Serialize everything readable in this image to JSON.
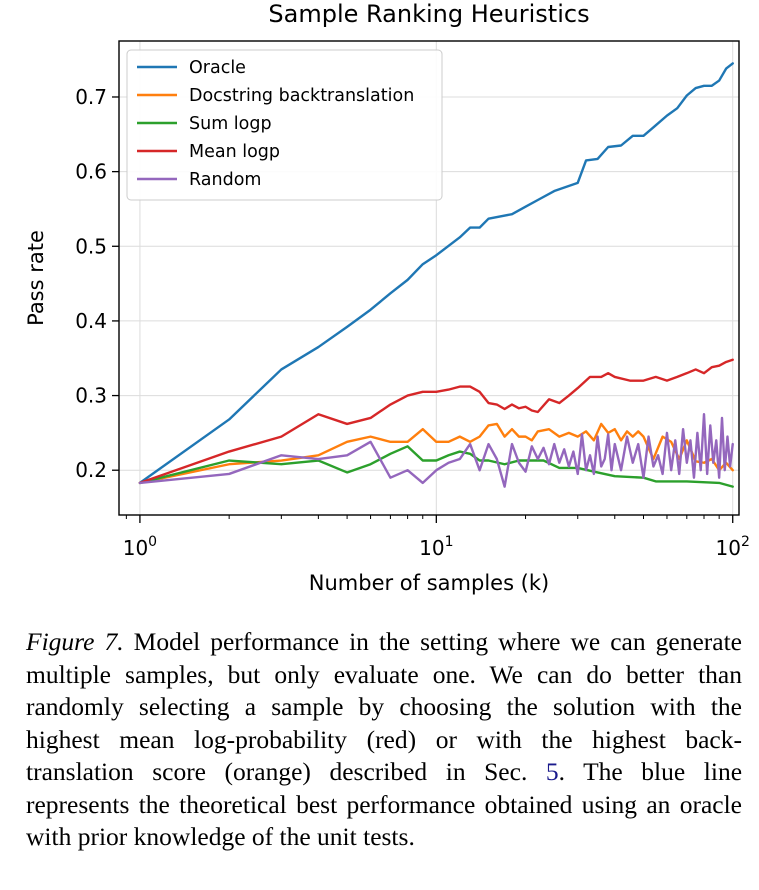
{
  "chart_data": {
    "type": "line",
    "title": "Sample Ranking Heuristics",
    "xlabel": "Number of samples (k)",
    "ylabel": "Pass rate",
    "xscale": "log",
    "xlim": [
      0.85,
      105
    ],
    "ylim": [
      0.14,
      0.775
    ],
    "x_ticks": [
      {
        "value": 1,
        "base": "10",
        "exp": "0"
      },
      {
        "value": 10,
        "base": "10",
        "exp": "1"
      },
      {
        "value": 100,
        "base": "10",
        "exp": "2"
      }
    ],
    "y_ticks": [
      "0.2",
      "0.3",
      "0.4",
      "0.5",
      "0.6",
      "0.7"
    ],
    "grid": true,
    "legend_position": "top-left",
    "series": [
      {
        "name": "Oracle",
        "color": "#1f77b4",
        "points": [
          [
            1,
            0.183
          ],
          [
            2,
            0.268
          ],
          [
            3,
            0.335
          ],
          [
            4,
            0.365
          ],
          [
            5,
            0.392
          ],
          [
            6,
            0.415
          ],
          [
            7,
            0.437
          ],
          [
            8,
            0.455
          ],
          [
            9,
            0.476
          ],
          [
            10,
            0.488
          ],
          [
            12,
            0.512
          ],
          [
            13,
            0.525
          ],
          [
            14,
            0.525
          ],
          [
            15,
            0.537
          ],
          [
            18,
            0.543
          ],
          [
            20,
            0.553
          ],
          [
            22,
            0.562
          ],
          [
            25,
            0.574
          ],
          [
            30,
            0.585
          ],
          [
            32,
            0.615
          ],
          [
            35,
            0.617
          ],
          [
            38,
            0.633
          ],
          [
            42,
            0.635
          ],
          [
            46,
            0.648
          ],
          [
            50,
            0.648
          ],
          [
            55,
            0.662
          ],
          [
            60,
            0.675
          ],
          [
            65,
            0.685
          ],
          [
            70,
            0.702
          ],
          [
            75,
            0.712
          ],
          [
            80,
            0.715
          ],
          [
            85,
            0.715
          ],
          [
            90,
            0.722
          ],
          [
            95,
            0.738
          ],
          [
            100,
            0.745
          ]
        ]
      },
      {
        "name": "Docstring backtranslation",
        "color": "#ff7f0e",
        "points": [
          [
            1,
            0.183
          ],
          [
            2,
            0.208
          ],
          [
            3,
            0.213
          ],
          [
            4,
            0.22
          ],
          [
            5,
            0.238
          ],
          [
            6,
            0.245
          ],
          [
            7,
            0.238
          ],
          [
            8,
            0.238
          ],
          [
            9,
            0.255
          ],
          [
            10,
            0.238
          ],
          [
            11,
            0.238
          ],
          [
            12,
            0.245
          ],
          [
            13,
            0.238
          ],
          [
            14,
            0.245
          ],
          [
            15,
            0.26
          ],
          [
            16,
            0.262
          ],
          [
            17,
            0.245
          ],
          [
            18,
            0.255
          ],
          [
            19,
            0.245
          ],
          [
            20,
            0.245
          ],
          [
            21,
            0.24
          ],
          [
            22,
            0.252
          ],
          [
            24,
            0.255
          ],
          [
            26,
            0.245
          ],
          [
            28,
            0.25
          ],
          [
            30,
            0.245
          ],
          [
            32,
            0.252
          ],
          [
            34,
            0.24
          ],
          [
            36,
            0.262
          ],
          [
            38,
            0.25
          ],
          [
            40,
            0.255
          ],
          [
            42,
            0.24
          ],
          [
            44,
            0.252
          ],
          [
            46,
            0.245
          ],
          [
            48,
            0.252
          ],
          [
            50,
            0.245
          ],
          [
            54,
            0.215
          ],
          [
            58,
            0.245
          ],
          [
            62,
            0.238
          ],
          [
            66,
            0.215
          ],
          [
            70,
            0.24
          ],
          [
            75,
            0.212
          ],
          [
            80,
            0.21
          ],
          [
            85,
            0.215
          ],
          [
            90,
            0.2
          ],
          [
            95,
            0.21
          ],
          [
            100,
            0.2
          ]
        ]
      },
      {
        "name": "Sum logp",
        "color": "#2ca02c",
        "points": [
          [
            1,
            0.183
          ],
          [
            2,
            0.213
          ],
          [
            3,
            0.208
          ],
          [
            4,
            0.213
          ],
          [
            5,
            0.197
          ],
          [
            6,
            0.208
          ],
          [
            7,
            0.222
          ],
          [
            8,
            0.232
          ],
          [
            9,
            0.213
          ],
          [
            10,
            0.213
          ],
          [
            11,
            0.22
          ],
          [
            12,
            0.225
          ],
          [
            13,
            0.222
          ],
          [
            14,
            0.213
          ],
          [
            15,
            0.213
          ],
          [
            17,
            0.208
          ],
          [
            19,
            0.213
          ],
          [
            23,
            0.213
          ],
          [
            26,
            0.203
          ],
          [
            30,
            0.203
          ],
          [
            35,
            0.197
          ],
          [
            40,
            0.192
          ],
          [
            50,
            0.19
          ],
          [
            55,
            0.185
          ],
          [
            70,
            0.185
          ],
          [
            90,
            0.183
          ],
          [
            100,
            0.178
          ]
        ]
      },
      {
        "name": "Mean logp",
        "color": "#d62728",
        "points": [
          [
            1,
            0.183
          ],
          [
            2,
            0.225
          ],
          [
            3,
            0.245
          ],
          [
            4,
            0.275
          ],
          [
            5,
            0.262
          ],
          [
            6,
            0.27
          ],
          [
            7,
            0.288
          ],
          [
            8,
            0.3
          ],
          [
            9,
            0.305
          ],
          [
            10,
            0.305
          ],
          [
            11,
            0.308
          ],
          [
            12,
            0.312
          ],
          [
            13,
            0.312
          ],
          [
            14,
            0.305
          ],
          [
            15,
            0.29
          ],
          [
            16,
            0.288
          ],
          [
            17,
            0.282
          ],
          [
            18,
            0.288
          ],
          [
            19,
            0.283
          ],
          [
            20,
            0.285
          ],
          [
            21,
            0.28
          ],
          [
            22,
            0.278
          ],
          [
            24,
            0.295
          ],
          [
            26,
            0.29
          ],
          [
            28,
            0.3
          ],
          [
            30,
            0.31
          ],
          [
            33,
            0.325
          ],
          [
            36,
            0.325
          ],
          [
            38,
            0.33
          ],
          [
            40,
            0.325
          ],
          [
            45,
            0.32
          ],
          [
            50,
            0.32
          ],
          [
            55,
            0.325
          ],
          [
            60,
            0.32
          ],
          [
            65,
            0.325
          ],
          [
            70,
            0.33
          ],
          [
            75,
            0.335
          ],
          [
            80,
            0.33
          ],
          [
            85,
            0.338
          ],
          [
            90,
            0.34
          ],
          [
            95,
            0.345
          ],
          [
            100,
            0.348
          ]
        ]
      },
      {
        "name": "Random",
        "color": "#9467bd",
        "points": [
          [
            1,
            0.183
          ],
          [
            2,
            0.195
          ],
          [
            3,
            0.22
          ],
          [
            4,
            0.215
          ],
          [
            5,
            0.22
          ],
          [
            6,
            0.238
          ],
          [
            7,
            0.19
          ],
          [
            8,
            0.2
          ],
          [
            9,
            0.183
          ],
          [
            10,
            0.2
          ],
          [
            11,
            0.21
          ],
          [
            12,
            0.215
          ],
          [
            13,
            0.235
          ],
          [
            14,
            0.2
          ],
          [
            15,
            0.235
          ],
          [
            16,
            0.215
          ],
          [
            17,
            0.178
          ],
          [
            18,
            0.235
          ],
          [
            19,
            0.21
          ],
          [
            20,
            0.198
          ],
          [
            21,
            0.232
          ],
          [
            22,
            0.215
          ],
          [
            23,
            0.23
          ],
          [
            24,
            0.208
          ],
          [
            25,
            0.235
          ],
          [
            26,
            0.21
          ],
          [
            27,
            0.228
          ],
          [
            28,
            0.205
          ],
          [
            29,
            0.225
          ],
          [
            30,
            0.195
          ],
          [
            31,
            0.248
          ],
          [
            32,
            0.2
          ],
          [
            33,
            0.22
          ],
          [
            34,
            0.195
          ],
          [
            35,
            0.245
          ],
          [
            36,
            0.205
          ],
          [
            37,
            0.215
          ],
          [
            38,
            0.248
          ],
          [
            39,
            0.2
          ],
          [
            40,
            0.235
          ],
          [
            42,
            0.2
          ],
          [
            44,
            0.245
          ],
          [
            46,
            0.21
          ],
          [
            48,
            0.235
          ],
          [
            50,
            0.19
          ],
          [
            52,
            0.245
          ],
          [
            54,
            0.205
          ],
          [
            56,
            0.22
          ],
          [
            58,
            0.195
          ],
          [
            60,
            0.25
          ],
          [
            62,
            0.2
          ],
          [
            64,
            0.24
          ],
          [
            66,
            0.195
          ],
          [
            68,
            0.255
          ],
          [
            70,
            0.21
          ],
          [
            72,
            0.24
          ],
          [
            74,
            0.19
          ],
          [
            76,
            0.25
          ],
          [
            78,
            0.2
          ],
          [
            80,
            0.275
          ],
          [
            82,
            0.195
          ],
          [
            84,
            0.26
          ],
          [
            86,
            0.21
          ],
          [
            88,
            0.24
          ],
          [
            90,
            0.19
          ],
          [
            92,
            0.27
          ],
          [
            94,
            0.2
          ],
          [
            96,
            0.245
          ],
          [
            98,
            0.205
          ],
          [
            100,
            0.235
          ]
        ]
      }
    ]
  },
  "caption": {
    "figure_label": "Figure 7.",
    "text_before_ref": "Model performance in the setting where we can generate multiple samples, but only evaluate one. We can do better than randomly selecting a sample by choosing the solution with the highest mean log-probability (red) or with the highest back-translation score (orange) described in Sec.",
    "section_ref": "5",
    "text_after_ref": ". The blue line represents the theoretical best performance obtained using an oracle with prior knowledge of the unit tests."
  }
}
